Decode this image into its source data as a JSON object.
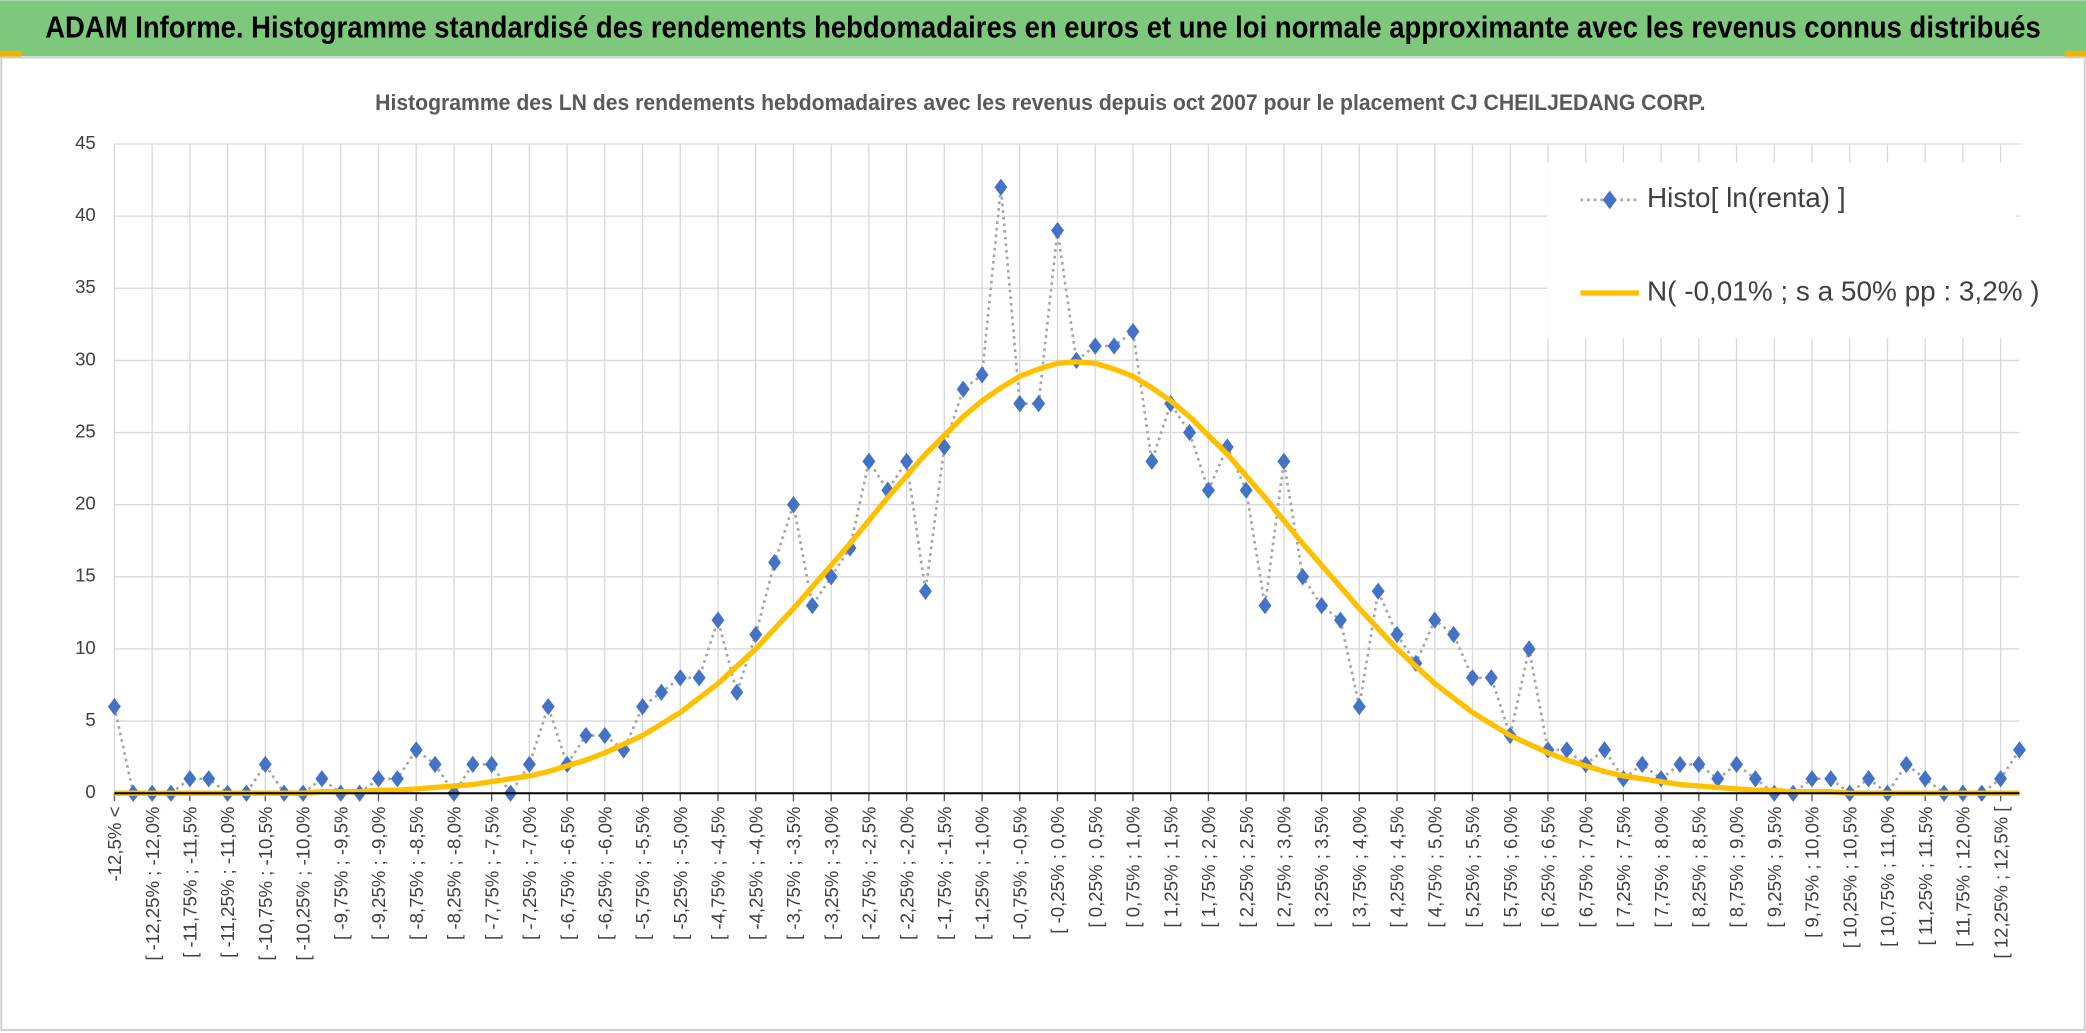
{
  "chart_data": {
    "type": "line",
    "banner": "ADAM Informe. Histogramme standardisé des rendements hebdomadaires en euros et une loi normale approximante avec les revenus connus distribués",
    "title": "Histogramme des LN des rendements hebdomadaires avec les revenus depuis oct 2007 pour le placement CJ CHEILJEDANG CORP.",
    "categories": [
      "-12,5% <",
      null,
      "[ -12,25% ; -12,0%",
      null,
      "[ -11,75% ; -11,5%",
      null,
      "[ -11,25% ; -11,0%",
      null,
      "[ -10,75% ; -10,5%",
      null,
      "[ -10,25% ; -10,0%",
      null,
      "[ -9,75% ; -9,5%",
      null,
      "[ -9,25% ; -9,0%",
      null,
      "[ -8,75% ; -8,5%",
      null,
      "[ -8,25% ; -8,0%",
      null,
      "[ -7,75% ; -7,5%",
      null,
      "[ -7,25% ; -7,0%",
      null,
      "[ -6,75% ; -6,5%",
      null,
      "[ -6,25% ; -6,0%",
      null,
      "[ -5,75% ; -5,5%",
      null,
      "[ -5,25% ; -5,0%",
      null,
      "[ -4,75% ; -4,5%",
      null,
      "[ -4,25% ; -4,0%",
      null,
      "[ -3,75% ; -3,5%",
      null,
      "[ -3,25% ; -3,0%",
      null,
      "[ -2,75% ; -2,5%",
      null,
      "[ -2,25% ; -2,0%",
      null,
      "[ -1,75% ; -1,5%",
      null,
      "[ -1,25% ; -1,0%",
      null,
      "[ -0,75% ; -0,5%",
      null,
      "[ -0,25% ; 0,0%",
      null,
      "[ 0,25% ; 0,5%",
      null,
      "[ 0,75% ; 1,0%",
      null,
      "[ 1,25% ; 1,5%",
      null,
      "[ 1,75% ; 2,0%",
      null,
      "[ 2,25% ; 2,5%",
      null,
      "[ 2,75% ; 3,0%",
      null,
      "[ 3,25% ; 3,5%",
      null,
      "[ 3,75% ; 4,0%",
      null,
      "[ 4,25% ; 4,5%",
      null,
      "[ 4,75% ; 5,0%",
      null,
      "[ 5,25% ; 5,5%",
      null,
      "[ 5,75% ; 6,0%",
      null,
      "[ 6,25% ; 6,5%",
      null,
      "[ 6,75% ; 7,0%",
      null,
      "[ 7,25% ; 7,5%",
      null,
      "[ 7,75% ; 8,0%",
      null,
      "[ 8,25% ; 8,5%",
      null,
      "[ 8,75% ; 9,0%",
      null,
      "[ 9,25% ; 9,5%",
      null,
      "[ 9,75% ; 10,0%",
      null,
      "[ 10,25% ; 10,5%",
      null,
      "[ 10,75% ; 11,0%",
      null,
      "[ 11,25% ; 11,5%",
      null,
      "[ 11,75% ; 12,0%",
      null,
      "[ 12,25% ; 12,5% [",
      null
    ],
    "series": [
      {
        "name": "Histo[ ln(renta) ]",
        "color": "#4472c4",
        "line_color": "#a6a6a6",
        "marker": "diamond",
        "values": [
          6,
          0,
          0,
          0,
          1,
          1,
          0,
          0,
          2,
          0,
          0,
          1,
          0,
          0,
          1,
          1,
          3,
          2,
          0,
          2,
          2,
          0,
          2,
          6,
          2,
          4,
          4,
          3,
          6,
          7,
          8,
          8,
          12,
          7,
          11,
          16,
          20,
          13,
          15,
          17,
          23,
          21,
          23,
          14,
          24,
          28,
          29,
          42,
          27,
          27,
          39,
          30,
          31,
          31,
          32,
          23,
          27,
          25,
          21,
          24,
          21,
          13,
          23,
          15,
          13,
          12,
          6,
          14,
          11,
          9,
          12,
          11,
          8,
          8,
          4,
          10,
          3,
          3,
          2,
          3,
          1,
          2,
          1,
          2,
          2,
          1,
          2,
          1,
          0,
          0,
          1,
          1,
          0,
          1,
          0,
          2,
          1,
          0,
          0,
          0,
          1,
          3
        ]
      },
      {
        "name": "N( -0,01% ; s a 50% pp : 3,2% )",
        "color": "#ffc000",
        "values": [
          0,
          0,
          0,
          0,
          0,
          0,
          0,
          0,
          0,
          0,
          0,
          0.1,
          0.1,
          0.1,
          0.2,
          0.2,
          0.3,
          0.4,
          0.5,
          0.6,
          0.8,
          1.0,
          1.2,
          1.5,
          1.9,
          2.3,
          2.8,
          3.4,
          4.0,
          4.8,
          5.6,
          6.6,
          7.6,
          8.8,
          10.0,
          11.4,
          12.8,
          14.3,
          15.8,
          17.3,
          18.9,
          20.5,
          22.0,
          23.5,
          24.8,
          26.1,
          27.2,
          28.1,
          28.9,
          29.4,
          29.8,
          29.9,
          29.8,
          29.4,
          28.9,
          28.1,
          27.2,
          26.1,
          24.8,
          23.5,
          22.0,
          20.5,
          18.9,
          17.3,
          15.8,
          14.3,
          12.8,
          11.4,
          10.0,
          8.8,
          7.6,
          6.6,
          5.6,
          4.8,
          4.0,
          3.4,
          2.8,
          2.3,
          1.9,
          1.5,
          1.2,
          1.0,
          0.8,
          0.6,
          0.5,
          0.4,
          0.3,
          0.2,
          0.2,
          0.1,
          0.1,
          0.1,
          0,
          0,
          0,
          0,
          0,
          0,
          0,
          0,
          0,
          0
        ]
      }
    ],
    "ylim": [
      0,
      45
    ],
    "yticks": [
      0,
      5,
      10,
      15,
      20,
      25,
      30,
      35,
      40,
      45
    ],
    "grid": true,
    "legend": "upper right"
  }
}
